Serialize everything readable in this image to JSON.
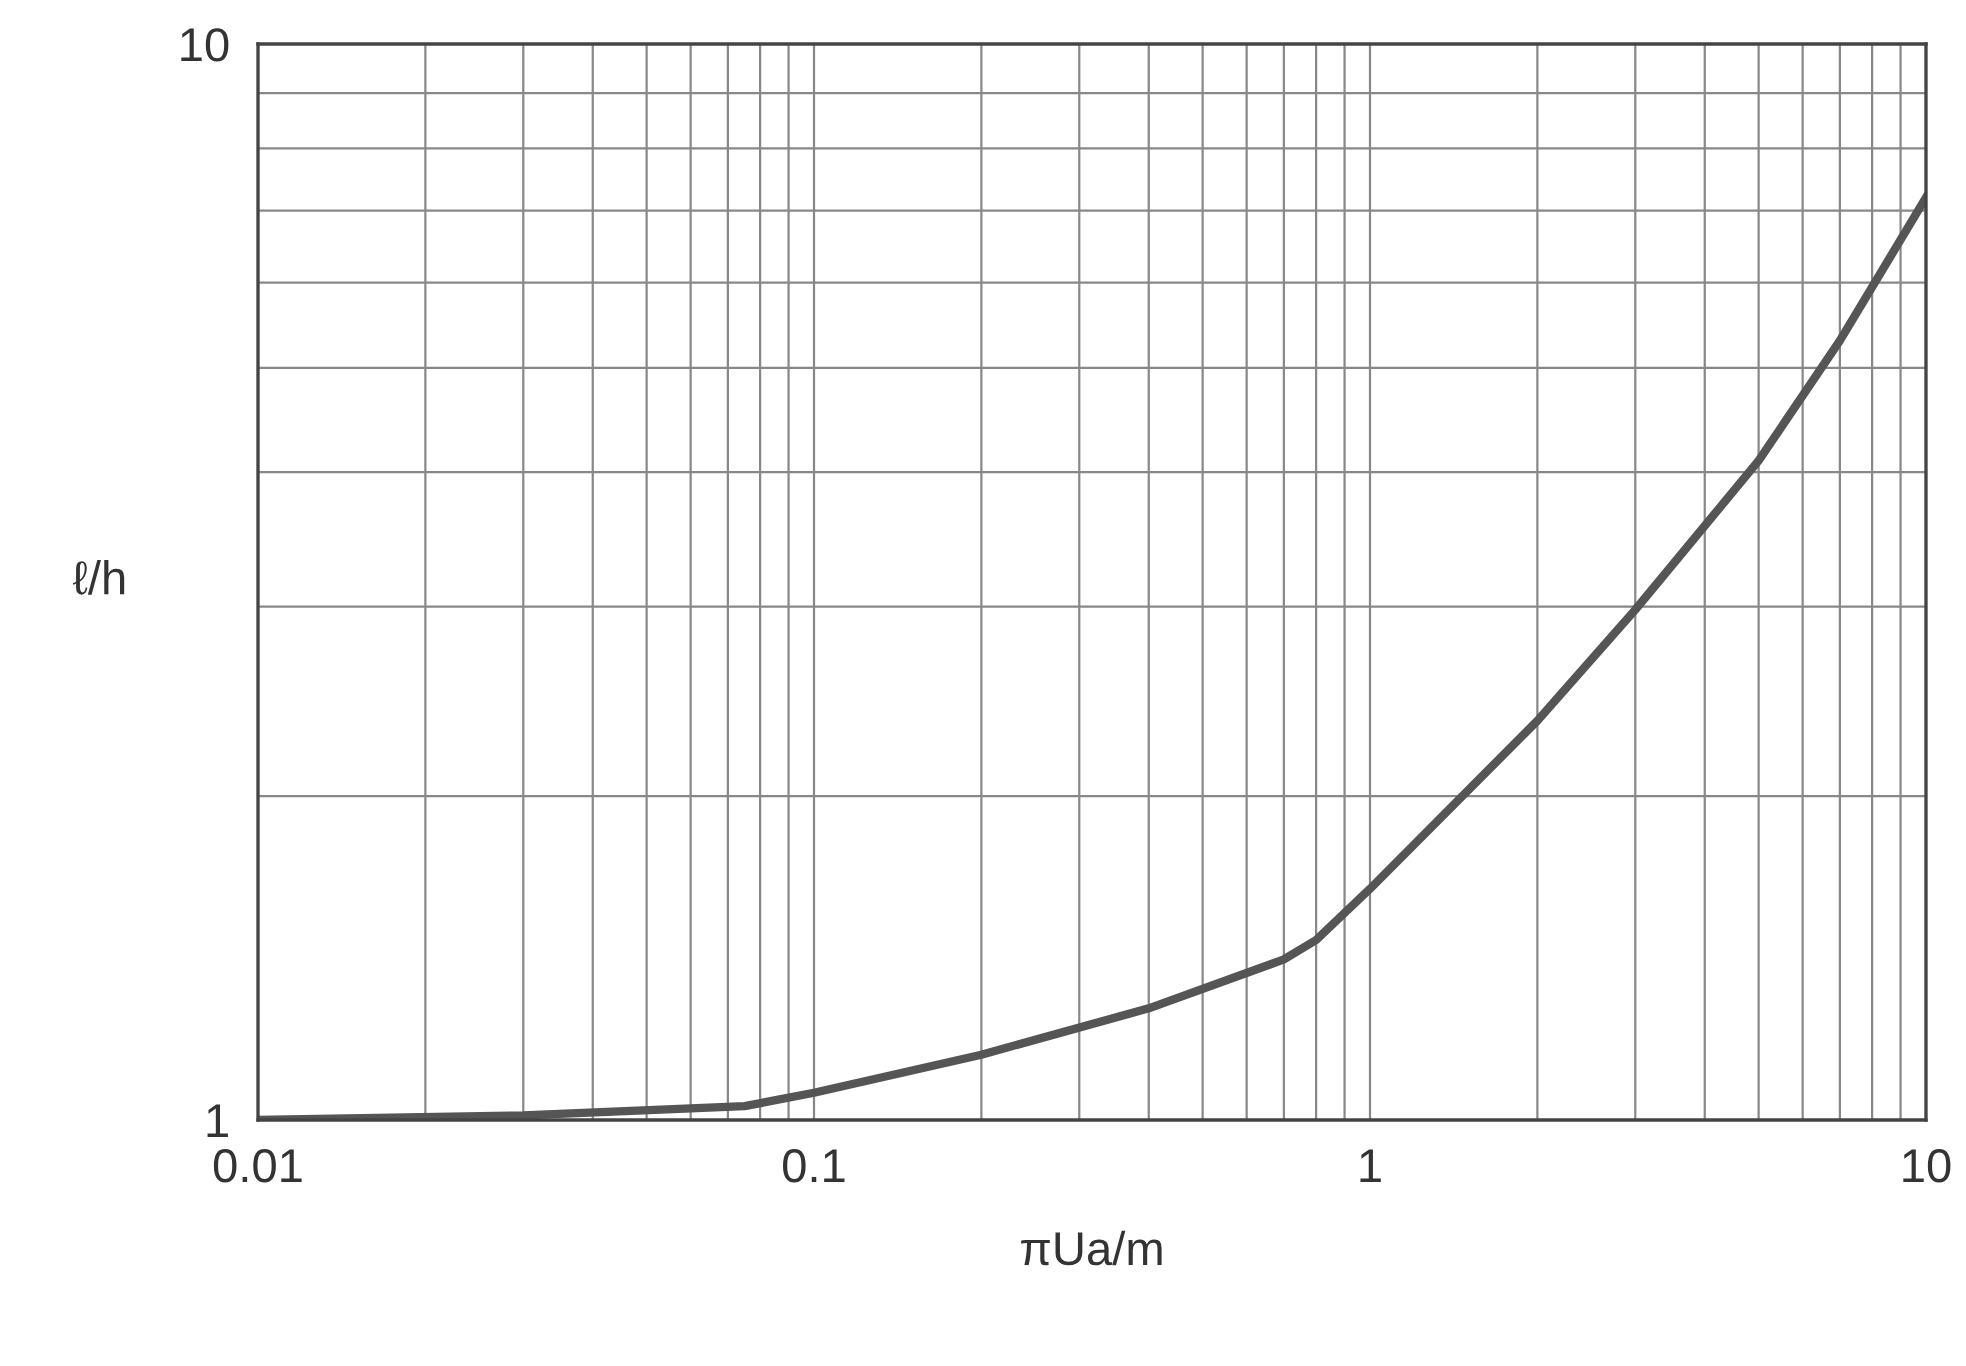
{
  "chart_data": {
    "type": "line",
    "xlabel": "πUa/m",
    "ylabel": "ℓ/h",
    "log": "xy",
    "grid": true,
    "marker": "none",
    "line_style": "solid",
    "xlim": [
      0.01,
      10
    ],
    "ylim": [
      1,
      10
    ],
    "xticks": [
      0.01,
      {
        "value": 0.02,
        "label": null
      },
      {
        "value": 0.03,
        "label": null
      },
      {
        "value": 0.04,
        "label": null
      },
      {
        "value": 0.05,
        "label": null
      },
      {
        "value": 0.06,
        "label": null
      },
      {
        "value": 0.07,
        "label": null
      },
      {
        "value": 0.08,
        "label": null
      },
      {
        "value": 0.09,
        "label": null
      },
      0.1,
      {
        "value": 0.2,
        "label": null
      },
      {
        "value": 0.3,
        "label": null
      },
      {
        "value": 0.4,
        "label": null
      },
      {
        "value": 0.5,
        "label": null
      },
      {
        "value": 0.6,
        "label": null
      },
      {
        "value": 0.7,
        "label": null
      },
      {
        "value": 0.8,
        "label": null
      },
      {
        "value": 0.9,
        "label": null
      },
      1,
      {
        "value": 2,
        "label": null
      },
      {
        "value": 3,
        "label": null
      },
      {
        "value": 4,
        "label": null
      },
      {
        "value": 5,
        "label": null
      },
      {
        "value": 6,
        "label": null
      },
      {
        "value": 7,
        "label": null
      },
      {
        "value": 8,
        "label": null
      },
      {
        "value": 9,
        "label": null
      },
      10
    ],
    "yticks": [
      1,
      {
        "value": 2,
        "label": null
      },
      {
        "value": 3,
        "label": null
      },
      {
        "value": 4,
        "label": null
      },
      {
        "value": 5,
        "label": null
      },
      {
        "value": 6,
        "label": null
      },
      {
        "value": 7,
        "label": null
      },
      {
        "value": 8,
        "label": null
      },
      {
        "value": 9,
        "label": null
      },
      10
    ],
    "series": [
      {
        "color": "#555555",
        "x": [
          0.01,
          0.03,
          0.075,
          0.1,
          0.2,
          0.4,
          0.7,
          0.8,
          1,
          2,
          3,
          5,
          7,
          10
        ],
        "values": [
          1.0,
          1.01,
          1.03,
          1.06,
          1.15,
          1.27,
          1.41,
          1.47,
          1.64,
          2.35,
          2.98,
          4.1,
          5.3,
          7.2
        ]
      }
    ]
  }
}
